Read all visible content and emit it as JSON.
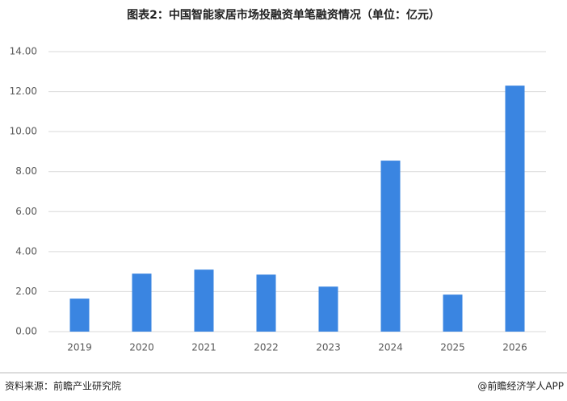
{
  "chart_data": {
    "type": "bar",
    "title": "图表2：中国智能家居市场投融资单笔融资情况（单位：亿元）",
    "categories": [
      "2019",
      "2020",
      "2021",
      "2022",
      "2023",
      "2024",
      "2025",
      "2026"
    ],
    "values": [
      1.65,
      2.9,
      3.1,
      2.85,
      2.25,
      8.55,
      1.85,
      12.3
    ],
    "color": "#3a85e1",
    "ylim": [
      0,
      14
    ],
    "yticks": [
      {
        "value": 0,
        "label": "0.00"
      },
      {
        "value": 2,
        "label": "2.00"
      },
      {
        "value": 4,
        "label": "4.00"
      },
      {
        "value": 6,
        "label": "6.00"
      },
      {
        "value": 8,
        "label": "8.00"
      },
      {
        "value": 10,
        "label": "10.00"
      },
      {
        "value": 12,
        "label": "12.00"
      },
      {
        "value": 14,
        "label": "14.00"
      }
    ],
    "grid": true
  },
  "footer": {
    "source": "资料来源：前瞻产业研究院",
    "credit": "@前瞻经济学人APP"
  }
}
